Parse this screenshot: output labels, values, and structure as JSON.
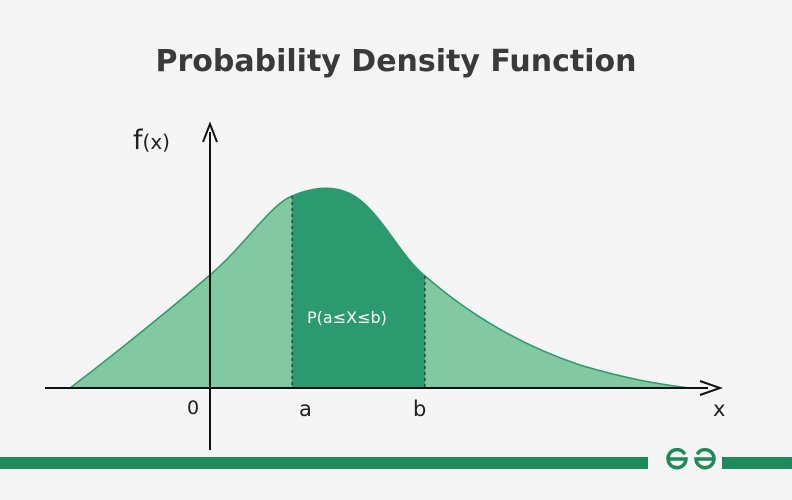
{
  "title": "Probability Density Function",
  "axes": {
    "y_label_main": "f",
    "y_label_arg": "(x)",
    "x_label": "x",
    "origin_label": "0",
    "a_label": "a",
    "b_label": "b"
  },
  "region_label": "P(a≤X≤b)",
  "logo_text": "GG",
  "colors": {
    "curve_fill": "#82c8a0",
    "region_fill": "#2b9a6e",
    "brand": "#1e8a5c",
    "axis": "#111111",
    "title": "#3a3a3a"
  }
}
